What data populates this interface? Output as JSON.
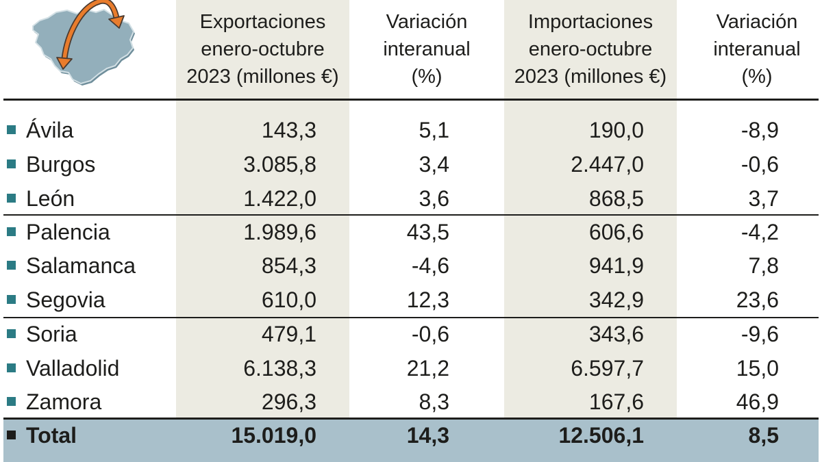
{
  "header_icon": "castilla-y-leon-map-arrows-icon",
  "colors": {
    "column_shade": "#ecebe2",
    "total_band": "#a9c0cb",
    "province_marker": "#2b7b84",
    "total_marker": "#1d1d1b",
    "text": "#1d1d1b",
    "map_fill": "#93afbb",
    "arrow": "#e97c2c"
  },
  "chart_data": {
    "type": "table",
    "headers": {
      "exports": [
        "Exportaciones",
        "enero-octubre",
        "2023 (millones €)"
      ],
      "exports_change": [
        "Variación",
        "interanual",
        "(%)"
      ],
      "imports": [
        "Importaciones",
        "enero-octubre",
        "2023 (millones €)"
      ],
      "imports_change": [
        "Variación",
        "interanual",
        "(%)"
      ]
    },
    "rows": [
      {
        "province": "Ávila",
        "exports": "143,3",
        "exports_change": "5,1",
        "imports": "190,0",
        "imports_change": "-8,9"
      },
      {
        "province": "Burgos",
        "exports": "3.085,8",
        "exports_change": "3,4",
        "imports": "2.447,0",
        "imports_change": "-0,6"
      },
      {
        "province": "León",
        "exports": "1.422,0",
        "exports_change": "3,6",
        "imports": "868,5",
        "imports_change": "3,7"
      },
      {
        "province": "Palencia",
        "exports": "1.989,6",
        "exports_change": "43,5",
        "imports": "606,6",
        "imports_change": "-4,2"
      },
      {
        "province": "Salamanca",
        "exports": "854,3",
        "exports_change": "-4,6",
        "imports": "941,9",
        "imports_change": "7,8"
      },
      {
        "province": "Segovia",
        "exports": "610,0",
        "exports_change": "12,3",
        "imports": "342,9",
        "imports_change": "23,6"
      },
      {
        "province": "Soria",
        "exports": "479,1",
        "exports_change": "-0,6",
        "imports": "343,6",
        "imports_change": "-9,6"
      },
      {
        "province": "Valladolid",
        "exports": "6.138,3",
        "exports_change": "21,2",
        "imports": "6.597,7",
        "imports_change": "15,0"
      },
      {
        "province": "Zamora",
        "exports": "296,3",
        "exports_change": "8,3",
        "imports": "167,6",
        "imports_change": "46,9"
      }
    ],
    "total": {
      "province": "Total",
      "exports": "15.019,0",
      "exports_change": "14,3",
      "imports": "12.506,1",
      "imports_change": "8,5"
    }
  }
}
